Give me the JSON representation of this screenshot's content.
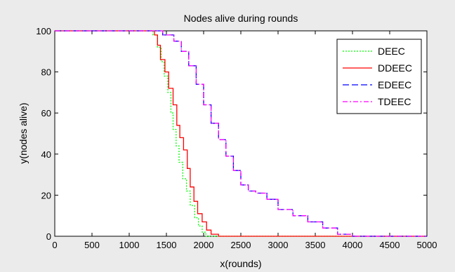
{
  "chart_data": {
    "type": "line",
    "title": "Nodes alive during rounds",
    "xlabel": "x(rounds)",
    "ylabel": "y(nodes alive)",
    "xlim": [
      0,
      5000
    ],
    "ylim": [
      0,
      100
    ],
    "xticks": [
      0,
      500,
      1000,
      1500,
      2000,
      2500,
      3000,
      3500,
      4000,
      4500,
      5000
    ],
    "yticks": [
      0,
      20,
      40,
      60,
      80,
      100
    ],
    "grid": false,
    "legend_position": "top-right",
    "series": [
      {
        "name": "DEEC",
        "color": "#00ff00",
        "dash": "dotted",
        "points": [
          [
            0,
            100
          ],
          [
            1250,
            100
          ],
          [
            1320,
            98
          ],
          [
            1380,
            92
          ],
          [
            1430,
            85
          ],
          [
            1470,
            78
          ],
          [
            1520,
            70
          ],
          [
            1560,
            60
          ],
          [
            1590,
            52
          ],
          [
            1630,
            44
          ],
          [
            1670,
            36
          ],
          [
            1720,
            28
          ],
          [
            1770,
            22
          ],
          [
            1820,
            15
          ],
          [
            1880,
            9
          ],
          [
            1930,
            5
          ],
          [
            1980,
            2
          ],
          [
            2030,
            0
          ],
          [
            5000,
            0
          ]
        ]
      },
      {
        "name": "DDEEC",
        "color": "#ff0000",
        "dash": "solid",
        "points": [
          [
            0,
            100
          ],
          [
            1290,
            100
          ],
          [
            1340,
            98
          ],
          [
            1380,
            93
          ],
          [
            1420,
            86
          ],
          [
            1480,
            80
          ],
          [
            1530,
            72
          ],
          [
            1590,
            64
          ],
          [
            1640,
            54
          ],
          [
            1680,
            48
          ],
          [
            1730,
            42
          ],
          [
            1780,
            33
          ],
          [
            1820,
            24
          ],
          [
            1870,
            17
          ],
          [
            1920,
            11
          ],
          [
            1980,
            7
          ],
          [
            2040,
            3
          ],
          [
            2100,
            1
          ],
          [
            2200,
            0
          ],
          [
            5000,
            0
          ]
        ]
      },
      {
        "name": "EDEEC",
        "color": "#0000ff",
        "dash": "dashed",
        "points": [
          [
            0,
            100
          ],
          [
            1300,
            100
          ],
          [
            1450,
            98
          ],
          [
            1600,
            95
          ],
          [
            1700,
            90
          ],
          [
            1800,
            83
          ],
          [
            1900,
            74
          ],
          [
            2000,
            64
          ],
          [
            2100,
            55
          ],
          [
            2200,
            47
          ],
          [
            2300,
            39
          ],
          [
            2400,
            32
          ],
          [
            2500,
            25
          ],
          [
            2600,
            22
          ],
          [
            2700,
            21
          ],
          [
            2850,
            18
          ],
          [
            3000,
            13
          ],
          [
            3200,
            10
          ],
          [
            3400,
            7
          ],
          [
            3600,
            4
          ],
          [
            3800,
            1
          ],
          [
            4000,
            0
          ],
          [
            5000,
            0
          ]
        ]
      },
      {
        "name": "TDEEC",
        "color": "#ff00ff",
        "dash": "dashdot",
        "points": [
          [
            0,
            100
          ],
          [
            1300,
            100
          ],
          [
            1450,
            98
          ],
          [
            1600,
            95
          ],
          [
            1700,
            90
          ],
          [
            1800,
            83
          ],
          [
            1900,
            74
          ],
          [
            2000,
            64
          ],
          [
            2100,
            55
          ],
          [
            2200,
            47
          ],
          [
            2300,
            39
          ],
          [
            2400,
            32
          ],
          [
            2500,
            25
          ],
          [
            2600,
            22
          ],
          [
            2700,
            21
          ],
          [
            2850,
            18
          ],
          [
            3000,
            13
          ],
          [
            3200,
            10
          ],
          [
            3400,
            7
          ],
          [
            3600,
            4
          ],
          [
            3800,
            1
          ],
          [
            4000,
            0
          ],
          [
            5000,
            0
          ]
        ]
      }
    ]
  }
}
